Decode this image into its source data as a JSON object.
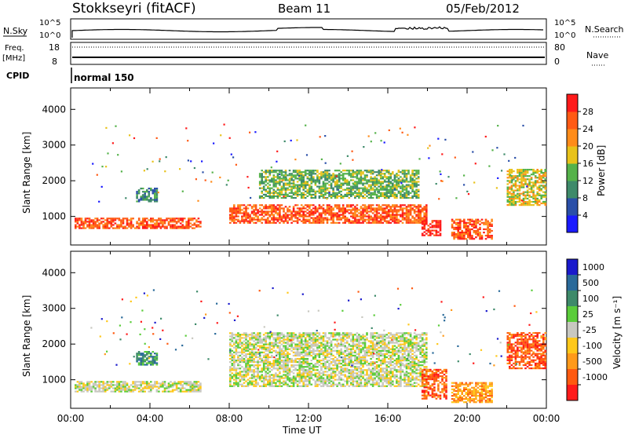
{
  "header": {
    "station": "Stokkseyri (fitACF)",
    "beam": "Beam 11",
    "date": "05/Feb/2012"
  },
  "top_panels": {
    "nsky_label": "N.Sky",
    "nsky_ticks": [
      "10^5",
      "10^0"
    ],
    "nsearch_label": "N.Search",
    "nsearch_ticks": [
      "10^5",
      "10^0"
    ],
    "freq_label": "Freq.",
    "freq_unit": "[MHz]",
    "freq_ticks": [
      "18",
      "8"
    ],
    "nave_label": "Nave",
    "nave_ticks": [
      "80",
      "0"
    ],
    "cpid_label": "CPID",
    "mode_text": "normal 150"
  },
  "chart_data": [
    {
      "type": "heatmap",
      "name": "power",
      "ylabel": "Slant Range [km]",
      "ylim": [
        200,
        4600
      ],
      "yticks": [
        "1000",
        "2000",
        "3000",
        "4000"
      ],
      "xlim": [
        0,
        24
      ],
      "xticks": [
        "00:00",
        "04:00",
        "08:00",
        "12:00",
        "16:00",
        "20:00",
        "00:00"
      ],
      "colorbar": {
        "label": "Power [dB]",
        "ticks": [
          "4",
          "8",
          "12",
          "16",
          "20",
          "24",
          "28"
        ],
        "colors": [
          "#1a1aff",
          "#2a4fa8",
          "#3e8a6a",
          "#55b24a",
          "#e8c21a",
          "#ff8c1a",
          "#ff5a14",
          "#ff1a1a"
        ]
      },
      "regions": [
        {
          "t0": 0.2,
          "t1": 6.5,
          "r0": 650,
          "r1": 950,
          "level": 6
        },
        {
          "t0": 3.3,
          "t1": 4.3,
          "r0": 1400,
          "r1": 1800,
          "level": 2
        },
        {
          "t0": 8.0,
          "t1": 18.0,
          "r0": 800,
          "r1": 1300,
          "level": 6
        },
        {
          "t0": 9.5,
          "t1": 17.5,
          "r0": 1500,
          "r1": 2300,
          "level": 3
        },
        {
          "t0": 17.7,
          "t1": 18.7,
          "r0": 450,
          "r1": 900,
          "level": 7
        },
        {
          "t0": 19.2,
          "t1": 21.3,
          "r0": 350,
          "r1": 900,
          "level": 6
        },
        {
          "t0": 22.0,
          "t1": 24.0,
          "r0": 1300,
          "r1": 2300,
          "level": 4
        }
      ]
    },
    {
      "type": "heatmap",
      "name": "velocity",
      "ylabel": "Slant Range [km]",
      "xlabel": "Time UT",
      "ylim": [
        200,
        4600
      ],
      "yticks": [
        "1000",
        "2000",
        "3000",
        "4000"
      ],
      "xlim": [
        0,
        24
      ],
      "xticks": [
        "00:00",
        "04:00",
        "08:00",
        "12:00",
        "16:00",
        "20:00",
        "00:00"
      ],
      "colorbar": {
        "label": "Velocity [m s⁻¹]",
        "ticks": [
          "1000",
          "500",
          "100",
          "25",
          "-25",
          "-100",
          "-500",
          "-1000"
        ],
        "colors": [
          "#1a1acc",
          "#2a6a9a",
          "#3e8a6a",
          "#5acc3a",
          "#c8c8c0",
          "#ffc81a",
          "#ff9a1a",
          "#ff5a10",
          "#ff1a1a"
        ]
      },
      "regions": [
        {
          "t0": 0.2,
          "t1": 6.5,
          "r0": 650,
          "r1": 950,
          "level": 4
        },
        {
          "t0": 3.3,
          "t1": 4.3,
          "r0": 1400,
          "r1": 1800,
          "level": 2
        },
        {
          "t0": 8.0,
          "t1": 18.0,
          "r0": 800,
          "r1": 2300,
          "level": 4
        },
        {
          "t0": 17.7,
          "t1": 19.0,
          "r0": 450,
          "r1": 1300,
          "level": 7
        },
        {
          "t0": 19.2,
          "t1": 21.3,
          "r0": 350,
          "r1": 900,
          "level": 6
        },
        {
          "t0": 22.0,
          "t1": 24.0,
          "r0": 1300,
          "r1": 2300,
          "level": 7
        }
      ]
    }
  ]
}
